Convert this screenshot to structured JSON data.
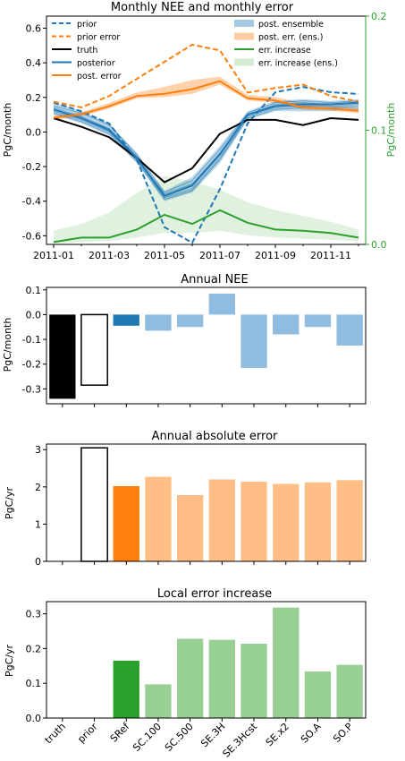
{
  "colors": {
    "blue": "#1f77b4",
    "orange": "#ff7f0e",
    "green": "#2ca02c",
    "black": "#000000",
    "light_blue": "#8fbcdf",
    "light_orange": "#ffbe86",
    "light_green": "#98d094"
  },
  "chart_data": [
    {
      "type": "line",
      "title": "Monthly NEE and monthly error",
      "ylabel": "PgC/month",
      "y2label": "PgC/month",
      "ylim": [
        -0.65,
        0.67
      ],
      "y2lim": [
        0,
        0.2
      ],
      "yticks": [
        0.6,
        0.4,
        0.2,
        0.0,
        -0.2,
        -0.4,
        -0.6
      ],
      "y2ticks": [
        0.0,
        0.1,
        0.2
      ],
      "xticks": [
        "2011-01",
        "2011-03",
        "2011-05",
        "2011-07",
        "2011-09",
        "2011-11"
      ],
      "months": [
        1,
        2,
        3,
        4,
        5,
        6,
        7,
        8,
        9,
        10,
        11,
        12
      ],
      "series": [
        {
          "name": "prior",
          "axis": "left",
          "color": "#1f77b4",
          "dash": true,
          "values": [
            0.17,
            0.12,
            0.05,
            -0.16,
            -0.55,
            -0.64,
            -0.33,
            0.05,
            0.23,
            0.26,
            0.23,
            0.22
          ]
        },
        {
          "name": "prior error",
          "axis": "right",
          "color": "#ff7f0e",
          "dash": true,
          "values": [
            0.125,
            0.12,
            0.13,
            0.145,
            0.16,
            0.175,
            0.17,
            0.133,
            0.137,
            0.14,
            0.13,
            0.125
          ]
        },
        {
          "name": "truth",
          "axis": "left",
          "color": "#000000",
          "dash": false,
          "values": [
            0.08,
            0.03,
            -0.03,
            -0.15,
            -0.29,
            -0.21,
            -0.01,
            0.07,
            0.07,
            0.04,
            0.08,
            0.07
          ]
        },
        {
          "name": "posterior",
          "axis": "left",
          "color": "#1f77b4",
          "dash": false,
          "values": [
            0.13,
            0.08,
            0.01,
            -0.15,
            -0.37,
            -0.31,
            -0.13,
            0.1,
            0.15,
            0.16,
            0.16,
            0.17
          ]
        },
        {
          "name": "post. error",
          "axis": "right",
          "color": "#ff7f0e",
          "dash": false,
          "values": [
            0.111,
            0.114,
            0.121,
            0.13,
            0.132,
            0.136,
            0.143,
            0.128,
            0.126,
            0.12,
            0.119,
            0.117
          ]
        },
        {
          "name": "err. increase",
          "axis": "right",
          "color": "#2ca02c",
          "dash": false,
          "values": [
            0.002,
            0.006,
            0.006,
            0.013,
            0.026,
            0.018,
            0.03,
            0.019,
            0.013,
            0.012,
            0.01,
            0.006
          ]
        }
      ],
      "ensemble_lines": [
        [
          0.15,
          0.11,
          0.04,
          -0.13,
          -0.35,
          -0.28,
          -0.1,
          0.11,
          0.17,
          0.18,
          0.17,
          0.18
        ],
        [
          0.12,
          0.07,
          0.0,
          -0.16,
          -0.38,
          -0.33,
          -0.15,
          0.09,
          0.14,
          0.15,
          0.15,
          0.16
        ],
        [
          0.14,
          0.09,
          0.02,
          -0.15,
          -0.36,
          -0.3,
          -0.12,
          0.1,
          0.16,
          0.17,
          0.16,
          0.17
        ],
        [
          0.11,
          0.06,
          -0.01,
          -0.17,
          -0.39,
          -0.34,
          -0.16,
          0.08,
          0.13,
          0.14,
          0.14,
          0.15
        ],
        [
          0.13,
          0.08,
          0.02,
          -0.14,
          -0.37,
          -0.31,
          -0.13,
          0.1,
          0.15,
          0.16,
          0.16,
          0.17
        ]
      ],
      "bands": [
        {
          "name": "post. ensemble",
          "axis": "left",
          "color": "#1f77b4",
          "low": [
            0.1,
            0.05,
            -0.02,
            -0.18,
            -0.4,
            -0.35,
            -0.18,
            0.07,
            0.12,
            0.12,
            0.12,
            0.13
          ],
          "high": [
            0.17,
            0.12,
            0.05,
            -0.12,
            -0.34,
            -0.26,
            -0.08,
            0.12,
            0.18,
            0.19,
            0.18,
            0.19
          ]
        },
        {
          "name": "post. err. (ens.)",
          "axis": "right",
          "color": "#ff7f0e",
          "low": [
            0.109,
            0.112,
            0.119,
            0.128,
            0.129,
            0.132,
            0.14,
            0.126,
            0.124,
            0.118,
            0.117,
            0.115
          ],
          "high": [
            0.113,
            0.116,
            0.124,
            0.133,
            0.138,
            0.144,
            0.147,
            0.131,
            0.129,
            0.124,
            0.122,
            0.12
          ]
        },
        {
          "name": "err. increase (ens.)",
          "axis": "right",
          "color": "#2ca02c",
          "low": [
            0.001,
            0.002,
            0.003,
            0.006,
            0.01,
            0.01,
            0.012,
            0.008,
            0.006,
            0.005,
            0.004,
            0.003
          ],
          "high": [
            0.012,
            0.018,
            0.028,
            0.045,
            0.06,
            0.055,
            0.048,
            0.037,
            0.03,
            0.025,
            0.02,
            0.013
          ]
        }
      ],
      "legend_left": [
        "prior",
        "prior error",
        "truth",
        "posterior",
        "post. error"
      ],
      "legend_right": [
        "post. ensemble",
        "post. err. (ens.)",
        "err. increase",
        "err. increase (ens.)"
      ]
    },
    {
      "type": "bar",
      "title": "Annual NEE",
      "ylabel": "PgC/month",
      "ylim": [
        -0.36,
        0.11
      ],
      "yticks": [
        0.1,
        0.0,
        -0.1,
        -0.2,
        -0.3
      ],
      "categories": [
        "truth",
        "prior",
        "SRef",
        "SC.100",
        "SC.500",
        "SE.3H",
        "SE.3Hcst",
        "SE.x2",
        "SO.A",
        "SO.P"
      ],
      "values": [
        -0.34,
        -0.285,
        -0.045,
        -0.065,
        -0.05,
        0.085,
        -0.215,
        -0.08,
        -0.05,
        -0.125
      ]
    },
    {
      "type": "bar",
      "title": "Annual absolute error",
      "ylabel": "PgC/yr",
      "ylim": [
        0,
        3.15
      ],
      "yticks": [
        3,
        2,
        1,
        0
      ],
      "categories": [
        "truth",
        "prior",
        "SRef",
        "SC.100",
        "SC.500",
        "SE.3H",
        "SE.3Hcst",
        "SE.x2",
        "SO.A",
        "SO.P"
      ],
      "values": [
        0,
        3.05,
        2.02,
        2.27,
        1.78,
        2.2,
        2.14,
        2.08,
        2.12,
        2.18
      ]
    },
    {
      "type": "bar",
      "title": "Local error increase",
      "ylabel": "PgC/yr",
      "ylim": [
        0,
        0.335
      ],
      "yticks": [
        0.3,
        0.2,
        0.1,
        0.0
      ],
      "categories": [
        "truth",
        "prior",
        "SRef",
        "SC.100",
        "SC.500",
        "SE.3H",
        "SE.3Hcst",
        "SE.x2",
        "SO.A",
        "SO.P"
      ],
      "values": [
        0,
        0,
        0.165,
        0.097,
        0.228,
        0.225,
        0.214,
        0.318,
        0.134,
        0.153
      ]
    }
  ]
}
